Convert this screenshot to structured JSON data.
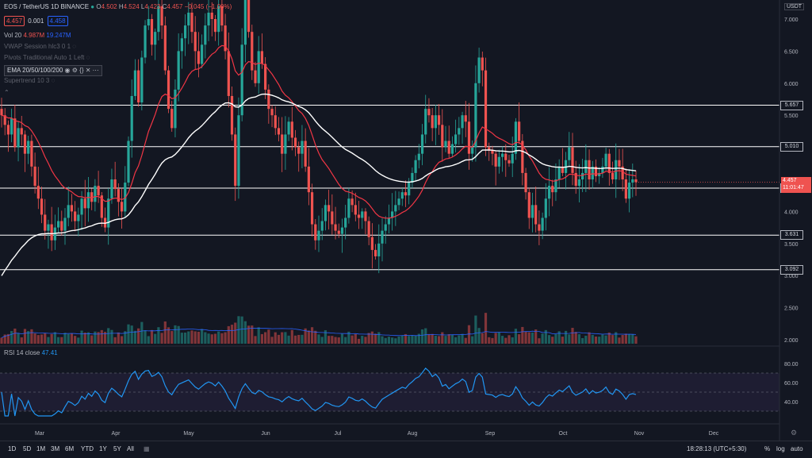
{
  "symbol": {
    "name": "EOS / TetherUS",
    "interval": "1D",
    "exchange": "BINANCE",
    "ohlc": {
      "o_label": "O",
      "o": "4.502",
      "h_label": "H",
      "h": "4.524",
      "l_label": "L",
      "l": "4.423",
      "c_label": "C",
      "c": "4.457",
      "change": "−0.045 (−1.00%)"
    },
    "sell_price": "4.457",
    "spread": "0.001",
    "buy_price": "4.458"
  },
  "indicators": {
    "vol": {
      "name": "Vol 20",
      "value1": "4.987M",
      "value2": "19.247M"
    },
    "vwap": "VWAP Session hlc3 0 1",
    "pivots": "Pivots Traditional Auto 1 Left",
    "ema": "EMA 20/50/100/200",
    "supertrend": "Supertrend 10 3",
    "rsi": {
      "name": "RSI 14 close",
      "value": "47.41"
    }
  },
  "currency": "USDT",
  "price_axis": [
    "7.000",
    "6.500",
    "6.000",
    "5.500",
    "5.000",
    "4.500",
    "4.000",
    "3.500",
    "3.000",
    "2.500",
    "2.000"
  ],
  "rsi_axis": [
    "80.00",
    "60.00",
    "40.00"
  ],
  "time_axis": [
    "Mar",
    "Apr",
    "May",
    "Jun",
    "Jul",
    "Aug",
    "Sep",
    "Oct",
    "Nov",
    "Dec"
  ],
  "levels": [
    {
      "value": 5.657,
      "label": "5.657"
    },
    {
      "value": 5.01,
      "label": "5.010"
    },
    {
      "value": 4.364,
      "label": "4.364"
    },
    {
      "value": 3.631,
      "label": "3.631"
    },
    {
      "value": 3.092,
      "label": "3.092"
    }
  ],
  "last_price": {
    "value": 4.457,
    "label": "4.457",
    "countdown": "11:01:47"
  },
  "bottom": {
    "timeframes": [
      "1D",
      "5D",
      "1M",
      "3M",
      "6M",
      "YTD",
      "1Y",
      "5Y",
      "All"
    ],
    "clock": "18:28:13 (UTC+5:30)",
    "percent": "%",
    "log": "log",
    "auto": "auto"
  },
  "colors": {
    "up": "#26a69a",
    "down": "#ef5350",
    "ema_red": "#f23645",
    "ema_white": "#ffffff",
    "rsi": "#2196f3",
    "vol_ma": "#2962ff"
  },
  "chart_data": {
    "type": "candlestick",
    "title": "EOS / TetherUS · 1D · BINANCE",
    "ylim": [
      2.0,
      7.1
    ],
    "x_range_months": [
      "Feb",
      "Dec"
    ],
    "closes": [
      5.5,
      5.35,
      5.2,
      5.45,
      5.0,
      5.3,
      5.2,
      4.9,
      5.1,
      4.7,
      4.4,
      4.2,
      3.95,
      3.7,
      3.8,
      3.55,
      3.75,
      3.85,
      3.7,
      3.9,
      4.1,
      4.0,
      3.85,
      3.95,
      4.2,
      4.05,
      4.3,
      4.15,
      4.4,
      4.25,
      3.9,
      3.75,
      4.2,
      4.5,
      4.35,
      4.15,
      4.0,
      4.45,
      5.1,
      5.8,
      6.2,
      5.7,
      6.4,
      6.9,
      7.0,
      6.6,
      6.8,
      7.2,
      6.9,
      6.2,
      5.6,
      5.3,
      5.9,
      6.5,
      6.7,
      6.9,
      7.1,
      6.8,
      6.5,
      6.3,
      6.6,
      6.9,
      7.1,
      7.0,
      6.8,
      7.2,
      6.9,
      6.5,
      5.8,
      5.2,
      4.4,
      5.5,
      6.6,
      7.4,
      6.8,
      6.2,
      6.0,
      6.5,
      6.3,
      5.9,
      5.6,
      5.5,
      5.3,
      5.2,
      4.9,
      5.2,
      5.4,
      5.15,
      5.0,
      4.9,
      5.1,
      4.7,
      4.3,
      3.8,
      3.55,
      3.7,
      3.85,
      4.1,
      4.0,
      3.8,
      3.7,
      3.65,
      3.75,
      3.9,
      4.2,
      4.1,
      3.95,
      3.9,
      4.0,
      3.85,
      3.6,
      3.4,
      3.3,
      3.5,
      3.7,
      3.8,
      3.9,
      4.0,
      4.1,
      4.2,
      4.3,
      4.25,
      4.45,
      4.6,
      4.8,
      4.9,
      5.2,
      5.6,
      5.5,
      5.3,
      5.5,
      5.35,
      5.0,
      5.1,
      4.9,
      5.05,
      5.2,
      5.3,
      5.5,
      5.4,
      4.9,
      5.0,
      6.0,
      6.4,
      6.2,
      5.0,
      4.95,
      4.9,
      4.7,
      4.85,
      4.9,
      4.8,
      4.75,
      4.9,
      5.4,
      5.1,
      4.6,
      4.3,
      3.9,
      4.1,
      3.8,
      3.7,
      3.9,
      4.2,
      4.4,
      4.3,
      4.5,
      4.7,
      4.6,
      4.8,
      5.0,
      4.6,
      4.4,
      4.5,
      4.6,
      4.8,
      4.5,
      4.7,
      4.55,
      4.6,
      4.7,
      4.9,
      4.6,
      4.5,
      4.8,
      4.7,
      4.5,
      4.2,
      4.45,
      4.5,
      4.457
    ],
    "series": [
      {
        "name": "EMA 20",
        "color": "#f23645"
      },
      {
        "name": "EMA 200",
        "color": "#ffffff"
      },
      {
        "name": "RSI 14 close",
        "last": 47.41
      }
    ],
    "horizontal_levels": [
      5.657,
      5.01,
      4.364,
      3.631,
      3.092
    ],
    "rsi_ylim": [
      20,
      95
    ]
  }
}
